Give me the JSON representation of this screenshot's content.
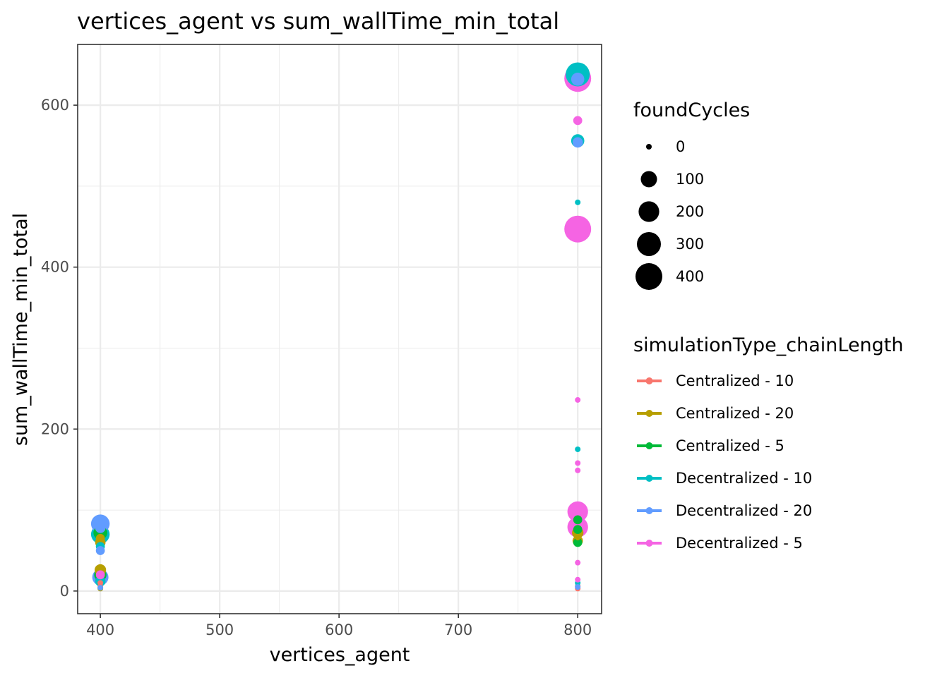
{
  "chart_data": {
    "type": "scatter",
    "title": "vertices_agent  vs  sum_wallTime_min_total",
    "xlabel": "vertices_agent",
    "ylabel": "sum_wallTime_min_total",
    "xlim": [
      381,
      820
    ],
    "ylim": [
      -28,
      675
    ],
    "x_ticks": [
      400,
      500,
      600,
      700,
      800
    ],
    "y_ticks": [
      0,
      200,
      400,
      600
    ],
    "grid": true,
    "size_legend": {
      "title": "foundCycles",
      "entries": [
        "0",
        "100",
        "200",
        "300",
        "400"
      ],
      "values": [
        0,
        100,
        200,
        300,
        400
      ]
    },
    "color_legend": {
      "title": "simulationType_chainLength",
      "entries": [
        "Centralized - 10",
        "Centralized - 20",
        "Centralized - 5",
        "Decentralized - 10",
        "Decentralized - 20",
        "Decentralized - 5"
      ]
    },
    "series": [
      {
        "name": "Centralized - 10",
        "color": "#F8766D",
        "points": [
          [
            400,
            5,
            0
          ],
          [
            400,
            10,
            0
          ],
          [
            800,
            3,
            0
          ],
          [
            800,
            6,
            0
          ]
        ]
      },
      {
        "name": "Centralized - 20",
        "color": "#B79F00",
        "points": [
          [
            400,
            3,
            0
          ],
          [
            400,
            26,
            30
          ],
          [
            400,
            60,
            20
          ],
          [
            400,
            65,
            10
          ],
          [
            800,
            62,
            20
          ],
          [
            800,
            72,
            30
          ],
          [
            800,
            66,
            0
          ]
        ]
      },
      {
        "name": "Centralized - 5",
        "color": "#00BA38",
        "points": [
          [
            400,
            20,
            40
          ],
          [
            400,
            72,
            60
          ],
          [
            800,
            60,
            10
          ],
          [
            800,
            88,
            10
          ],
          [
            800,
            76,
            10
          ]
        ]
      },
      {
        "name": "Decentralized - 10",
        "color": "#00BFC4",
        "points": [
          [
            400,
            12,
            20
          ],
          [
            400,
            70,
            150
          ],
          [
            400,
            55,
            10
          ],
          [
            800,
            10,
            0
          ],
          [
            800,
            175,
            0
          ],
          [
            800,
            480,
            0
          ],
          [
            800,
            556,
            50
          ],
          [
            800,
            638,
            300
          ]
        ]
      },
      {
        "name": "Decentralized - 20",
        "color": "#619CFF",
        "points": [
          [
            400,
            4,
            0
          ],
          [
            400,
            17,
            100
          ],
          [
            400,
            50,
            10
          ],
          [
            400,
            83,
            150
          ],
          [
            400,
            78,
            20
          ],
          [
            800,
            5,
            0
          ],
          [
            800,
            554,
            20
          ],
          [
            800,
            632,
            50
          ]
        ]
      },
      {
        "name": "Decentralized - 5",
        "color": "#F564E3",
        "points": [
          [
            400,
            20,
            10
          ],
          [
            800,
            14,
            0
          ],
          [
            800,
            35,
            0
          ],
          [
            800,
            79,
            200
          ],
          [
            800,
            98,
            200
          ],
          [
            800,
            149,
            0
          ],
          [
            800,
            158,
            0
          ],
          [
            800,
            236,
            0
          ],
          [
            800,
            447,
            400
          ],
          [
            800,
            581,
            10
          ],
          [
            800,
            633,
            400
          ]
        ]
      }
    ]
  }
}
